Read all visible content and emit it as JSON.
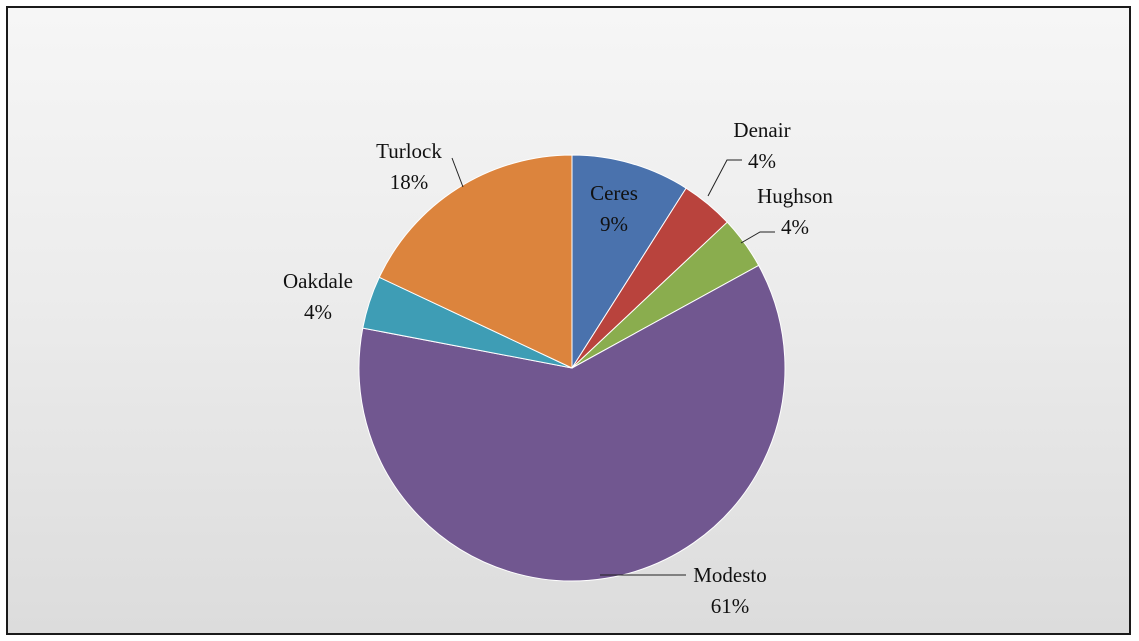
{
  "chart_data": {
    "type": "pie",
    "title": "",
    "legend": "none",
    "categories": [
      "Ceres",
      "Denair",
      "Hughson",
      "Modesto",
      "Oakdale",
      "Turlock"
    ],
    "values": [
      9,
      4,
      4,
      61,
      4,
      18
    ],
    "value_labels": [
      "9%",
      "4%",
      "4%",
      "61%",
      "4%",
      "18%"
    ],
    "colors": [
      "#4a72ad",
      "#b9433d",
      "#8aad4e",
      "#715790",
      "#3e9db5",
      "#dc843d"
    ]
  },
  "background": {
    "gradient_top": "#f6f6f6",
    "gradient_bottom": "#dcdcdc",
    "border": "#1a1a1a"
  }
}
